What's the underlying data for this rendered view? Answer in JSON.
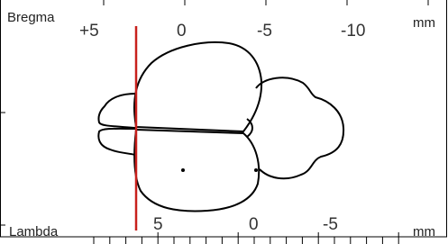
{
  "top_ruler": {
    "label": "Bregma",
    "ticks": [
      "+5",
      "0",
      "-5",
      "-10"
    ],
    "unit": "mm"
  },
  "bottom_ruler": {
    "label": "Lambda",
    "ticks": [
      "5",
      "0",
      "-5"
    ],
    "unit": "mm"
  }
}
